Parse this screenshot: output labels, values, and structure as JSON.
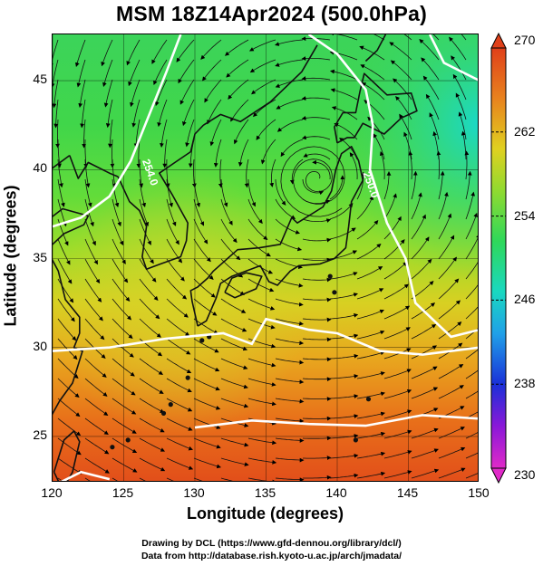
{
  "title": "MSM 18Z14Apr2024 (500.0hPa)",
  "chart_data": {
    "type": "heatmap",
    "description_kind": "map",
    "title": "MSM 18Z14Apr2024 (500.0hPa)",
    "xlabel": "Longitude (degrees)",
    "ylabel": "Latitude  (degrees)",
    "xlim": [
      120,
      150
    ],
    "ylim": [
      22.4,
      47.6
    ],
    "x_ticks": [
      "120",
      "125",
      "130",
      "135",
      "140",
      "145",
      "150"
    ],
    "y_ticks": [
      "25",
      "30",
      "35",
      "40",
      "45"
    ],
    "colorbar": {
      "range": [
        230,
        270
      ],
      "tick_labels": [
        "270",
        "262",
        "254",
        "246",
        "238",
        "230"
      ]
    },
    "contour_labels": [
      {
        "text": "250.0",
        "lon": 141.8,
        "lat": 39.8
      },
      {
        "text": "254.0",
        "lon": 126.3,
        "lat": 40.5
      }
    ],
    "low_center": {
      "lon": 138.5,
      "lat": 39.5
    }
  },
  "credits": {
    "line1": "Drawing by DCL (https://www.gfd-dennou.org/library/dcl/)",
    "line2": "Data from http://database.rish.kyoto-u.ac.jp/arch/jmadata/"
  },
  "colors": {
    "warm": "#e8601a",
    "mid": "#e8c21e",
    "green": "#38d84a",
    "cyan": "#18d8c8",
    "contour": "#ffffff"
  }
}
